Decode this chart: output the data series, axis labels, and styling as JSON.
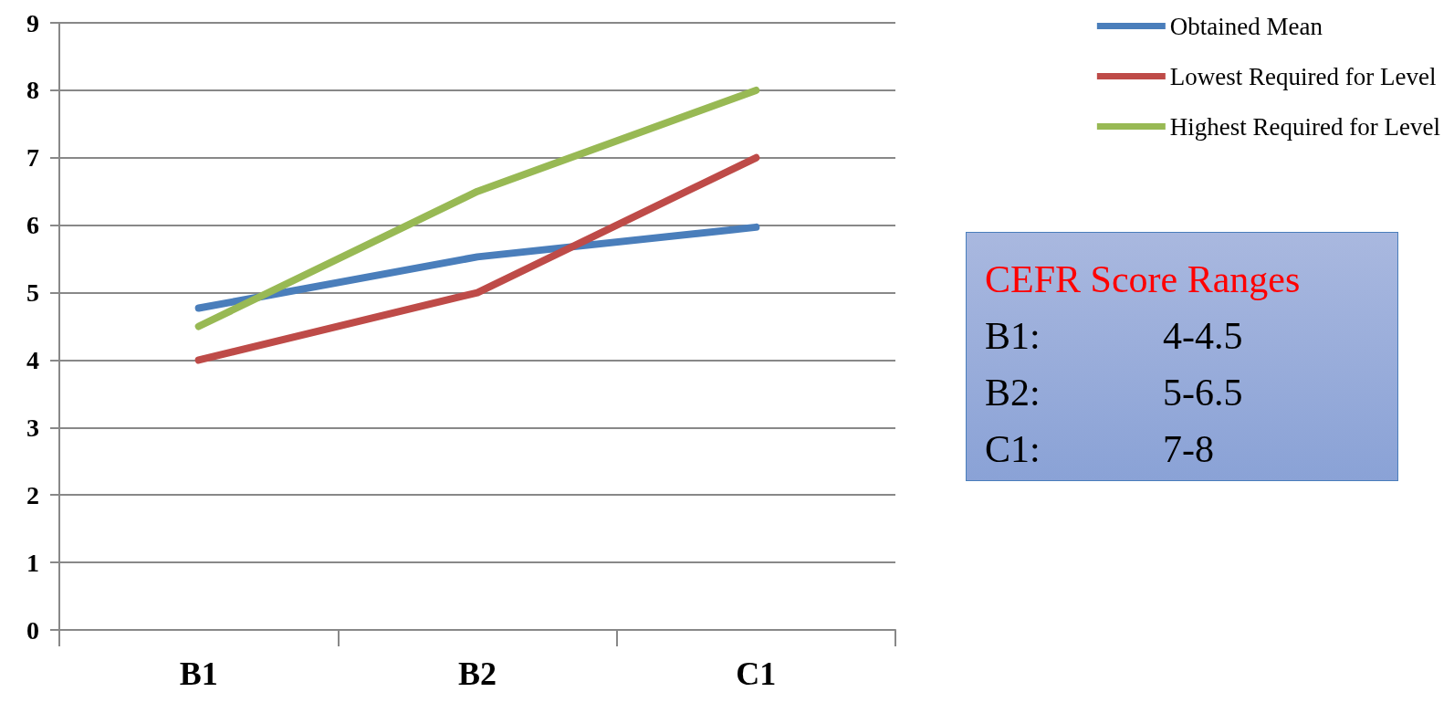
{
  "chart_data": {
    "type": "line",
    "categories": [
      "B1",
      "B2",
      "C1"
    ],
    "series": [
      {
        "name": "Obtained Mean",
        "color": "#4a7ebb",
        "values": [
          4.77,
          5.53,
          5.97
        ]
      },
      {
        "name": "Lowest Required for Level",
        "color": "#be4b48",
        "values": [
          4,
          5,
          7
        ]
      },
      {
        "name": "Highest Required for Level",
        "color": "#98b954",
        "values": [
          4.5,
          6.5,
          8
        ]
      }
    ],
    "ylim": [
      0,
      9
    ],
    "yticks": [
      0,
      1,
      2,
      3,
      4,
      5,
      6,
      7,
      8,
      9
    ],
    "grid": "y",
    "legend": "top right",
    "line_style": "solid",
    "annotations": [
      "CEFR Score Ranges",
      "B1:",
      "4-4.5",
      "B2:",
      "5-6.5",
      "C1:",
      "7-8"
    ]
  }
}
